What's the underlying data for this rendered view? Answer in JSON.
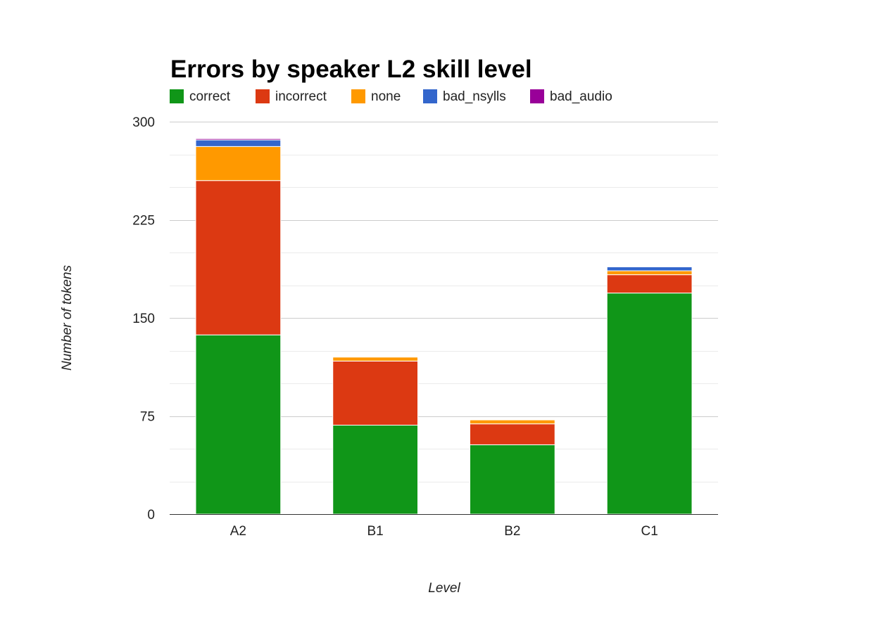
{
  "chart_data": {
    "type": "bar",
    "stacked": true,
    "title": "Errors by speaker L2 skill level",
    "xlabel": "Level",
    "ylabel": "Number of tokens",
    "categories": [
      "A2",
      "B1",
      "B2",
      "C1"
    ],
    "series": [
      {
        "name": "correct",
        "color": "#109618",
        "values": [
          137,
          68,
          53,
          169
        ]
      },
      {
        "name": "incorrect",
        "color": "#dc3912",
        "values": [
          118,
          49,
          16,
          14
        ]
      },
      {
        "name": "none",
        "color": "#ff9900",
        "values": [
          26,
          3,
          3,
          3
        ]
      },
      {
        "name": "bad_nsylls",
        "color": "#3366cc",
        "values": [
          5,
          0,
          0,
          3
        ]
      },
      {
        "name": "bad_audio",
        "color": "#990099",
        "values": [
          1,
          0,
          0,
          0
        ]
      }
    ],
    "ylim": [
      0,
      300
    ],
    "yticks": [
      0,
      75,
      150,
      225,
      300
    ],
    "grid": true,
    "legend": "top-left"
  }
}
